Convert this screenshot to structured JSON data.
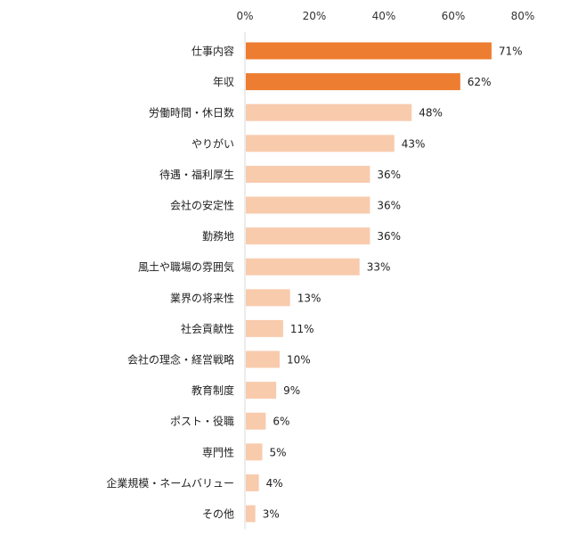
{
  "chart_data": {
    "type": "bar",
    "orientation": "horizontal",
    "title": "",
    "xlabel": "",
    "ylabel": "",
    "xlim": [
      0,
      80
    ],
    "ticks": [
      "0%",
      "20%",
      "40%",
      "60%",
      "80%"
    ],
    "tick_values": [
      0,
      20,
      40,
      60,
      80
    ],
    "axis_position": "top",
    "grid": false,
    "categories": [
      "仕事内容",
      "年収",
      "労働時間・休日数",
      "やりがい",
      "待遇・福利厚生",
      "会社の安定性",
      "勤務地",
      "風土や職場の雰囲気",
      "業界の将来性",
      "社会貢献性",
      "会社の理念・経営戦略",
      "教育制度",
      "ポスト・役職",
      "専門性",
      "企業規模・ネームバリュー",
      "その他"
    ],
    "values": [
      71,
      62,
      48,
      43,
      36,
      36,
      36,
      33,
      13,
      11,
      10,
      9,
      6,
      5,
      4,
      3
    ],
    "value_labels": [
      "71%",
      "62%",
      "48%",
      "43%",
      "36%",
      "36%",
      "36%",
      "33%",
      "13%",
      "11%",
      "10%",
      "9%",
      "6%",
      "5%",
      "4%",
      "3%"
    ],
    "highlighted_count": 2,
    "colors": {
      "highlight": "#ED7D31",
      "normal": "#F8CBAD",
      "axis": "#D9D9D9",
      "text": "#222222"
    }
  }
}
